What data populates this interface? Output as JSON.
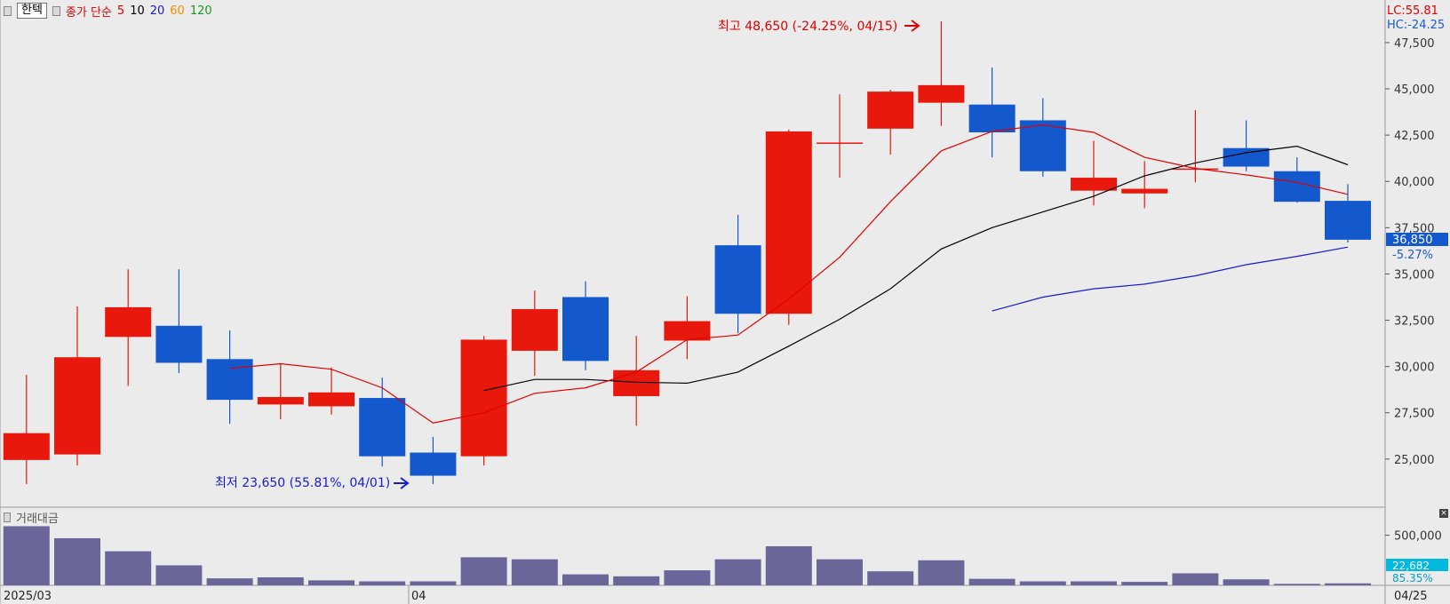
{
  "header": {
    "stock_name": "한텍",
    "ma_label": "종가 단순",
    "ma_periods": [
      "5",
      "10",
      "20",
      "60",
      "120"
    ]
  },
  "right_indicators": {
    "lc": "LC:55.81",
    "hc": "HC:-24.25"
  },
  "volume_header": {
    "label": "거래대금"
  },
  "colors": {
    "up": "#e8180c",
    "down": "#1358cc",
    "ma5": "#e00000",
    "ma10": "#000000",
    "ma20": "#1a1ad0",
    "volume": "#6b6699",
    "price_tag": "#1358cc",
    "volume_tag": "#00b8e0"
  },
  "chart_data": {
    "type": "candlestick",
    "x_labels": [
      "2025/03",
      "04",
      "04/25"
    ],
    "price_axis": {
      "ticks": [
        25000,
        27500,
        30000,
        32500,
        35000,
        37500,
        40000,
        42500,
        45000,
        47500
      ],
      "range": [
        22400,
        49800
      ]
    },
    "volume_axis": {
      "ticks": [
        500000
      ],
      "range": [
        0,
        700000
      ]
    },
    "candles": [
      {
        "o": 24950,
        "h": 29550,
        "l": 23650,
        "c": 26400
      },
      {
        "o": 25250,
        "h": 33250,
        "l": 24650,
        "c": 30500
      },
      {
        "o": 31600,
        "h": 35250,
        "l": 28950,
        "c": 33200
      },
      {
        "o": 32200,
        "h": 35250,
        "l": 29650,
        "c": 30200
      },
      {
        "o": 30400,
        "h": 31950,
        "l": 26900,
        "c": 28200
      },
      {
        "o": 27950,
        "h": 30150,
        "l": 27150,
        "c": 28350
      },
      {
        "o": 27850,
        "h": 29950,
        "l": 27400,
        "c": 28600
      },
      {
        "o": 28300,
        "h": 29400,
        "l": 24600,
        "c": 25150
      },
      {
        "o": 25350,
        "h": 26200,
        "l": 23650,
        "c": 24100
      },
      {
        "o": 25150,
        "h": 31650,
        "l": 24650,
        "c": 31450
      },
      {
        "o": 30850,
        "h": 34100,
        "l": 29500,
        "c": 33100
      },
      {
        "o": 33750,
        "h": 34600,
        "l": 29800,
        "c": 30300
      },
      {
        "o": 28400,
        "h": 31650,
        "l": 26800,
        "c": 29800
      },
      {
        "o": 31400,
        "h": 33800,
        "l": 30400,
        "c": 32450
      },
      {
        "o": 36550,
        "h": 38200,
        "l": 31800,
        "c": 32850
      },
      {
        "o": 32850,
        "h": 42800,
        "l": 32250,
        "c": 42700
      },
      {
        "o": 42100,
        "h": 44700,
        "l": 40200,
        "c": 42100
      },
      {
        "o": 42850,
        "h": 44950,
        "l": 41450,
        "c": 44850
      },
      {
        "o": 44250,
        "h": 48650,
        "l": 43000,
        "c": 45200
      },
      {
        "o": 44150,
        "h": 46150,
        "l": 41300,
        "c": 42650
      },
      {
        "o": 43300,
        "h": 44500,
        "l": 40250,
        "c": 40550
      },
      {
        "o": 39500,
        "h": 42200,
        "l": 38700,
        "c": 40200
      },
      {
        "o": 39350,
        "h": 41100,
        "l": 38550,
        "c": 39600
      },
      {
        "o": 40650,
        "h": 43850,
        "l": 39950,
        "c": 40700
      },
      {
        "o": 41800,
        "h": 43300,
        "l": 40550,
        "c": 40800
      },
      {
        "o": 40550,
        "h": 41300,
        "l": 38850,
        "c": 38900
      },
      {
        "o": 38950,
        "h": 39850,
        "l": 36700,
        "c": 36850
      }
    ],
    "ma5": [
      null,
      null,
      null,
      null,
      29900,
      30150,
      29850,
      28850,
      26950,
      27500,
      28550,
      28850,
      29700,
      31450,
      31700,
      33650,
      35900,
      38900,
      41650,
      42700,
      43050,
      42650,
      41300,
      40700,
      40350,
      39950,
      39300
    ],
    "ma10": [
      null,
      null,
      null,
      null,
      null,
      null,
      null,
      null,
      null,
      28700,
      29300,
      29300,
      29150,
      29100,
      29700,
      31100,
      32550,
      34200,
      36350,
      37500,
      38350,
      39200,
      40300,
      41000,
      41550,
      41900,
      40900
    ],
    "ma20": [
      null,
      null,
      null,
      null,
      null,
      null,
      null,
      null,
      null,
      null,
      null,
      null,
      null,
      null,
      null,
      null,
      null,
      null,
      null,
      33000,
      33750,
      34200,
      34450,
      34900,
      35500,
      35950,
      36450
    ],
    "volume": [
      590000,
      470000,
      340000,
      200000,
      70000,
      80000,
      50000,
      40000,
      40000,
      280000,
      260000,
      110000,
      90000,
      150000,
      260000,
      390000,
      260000,
      140000,
      250000,
      65000,
      40000,
      40000,
      35000,
      120000,
      60000,
      15000,
      20000
    ],
    "annotations": {
      "high": "최고 48,650 (-24.25%, 04/15)",
      "low": "최저 23,650 (55.81%, 04/01)",
      "last_price": "36,850",
      "last_change": "-5.27%",
      "last_volume": "22,682",
      "last_volume_pct": "85.35%"
    }
  }
}
